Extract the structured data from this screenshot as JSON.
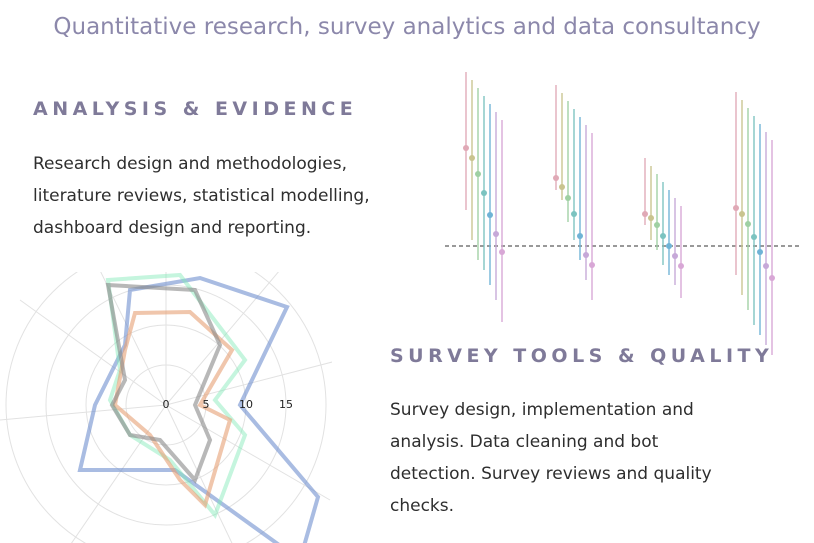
{
  "header": {
    "title": "Quantitative research, survey analytics and data consultancy"
  },
  "sections": [
    {
      "title": "ANALYSIS & EVIDENCE",
      "lines": [
        "Research design and methodologies,",
        "literature reviews, statistical modelling,",
        "dashboard design and reporting."
      ]
    },
    {
      "title": "SURVEY TOOLS & QUALITY",
      "lines": [
        "Survey design, implementation and",
        "analysis. Data cleaning and bot",
        "detection. Survey reviews and quality",
        "checks."
      ]
    }
  ],
  "radar_labels": [
    "0",
    "5",
    "10",
    "15"
  ]
}
